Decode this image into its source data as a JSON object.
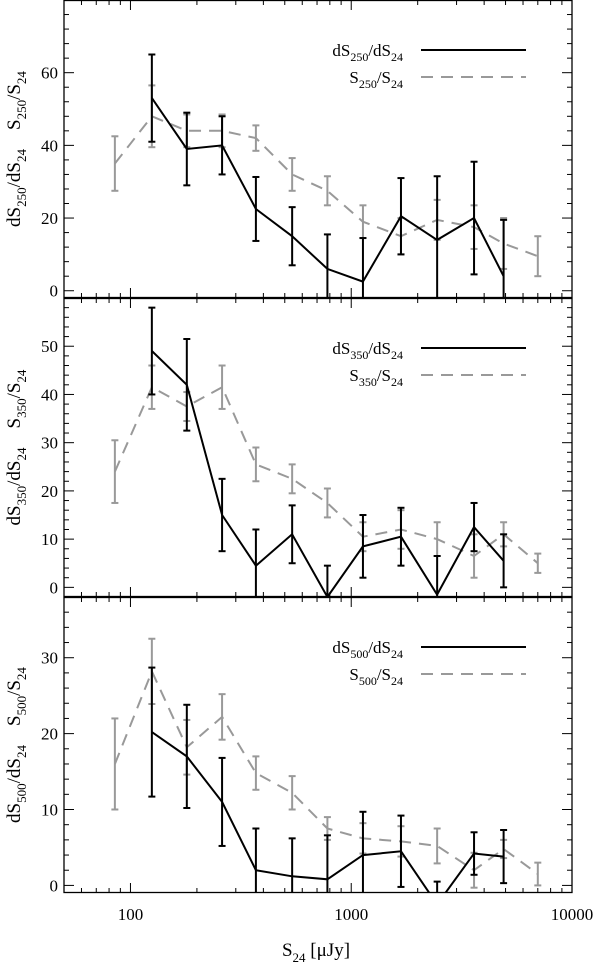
{
  "chart_data": {
    "type": "line",
    "xscale": "log",
    "xlim": [
      50,
      10000
    ],
    "x_ticks": [
      100,
      1000,
      10000
    ],
    "x_tick_labels": [
      "100",
      "1000",
      "10000"
    ],
    "xlabel": {
      "main": "S",
      "sub": "24",
      "tail": " [μJy]"
    },
    "colors": {
      "ratio_derivative": "#000000",
      "ratio_simple": "#999999"
    },
    "panels": [
      {
        "id": "250",
        "ylim": [
          -2,
          80
        ],
        "y_ticks": [
          0,
          20,
          40,
          60
        ],
        "ylabel": {
          "d1": "dS",
          "s1": "250",
          "m": "/dS",
          "s2": "24",
          "sp": "   ",
          "d2": "S",
          "s3": "250",
          "m2": "/S",
          "s4": "24"
        },
        "legend": [
          {
            "main": "dS",
            "sub1": "250",
            "mid": "/dS",
            "sub2": "24",
            "style": "solid"
          },
          {
            "main": "S",
            "sub1": "250",
            "mid": "/S",
            "sub2": "24",
            "style": "dashed"
          }
        ],
        "series": [
          {
            "key": "deriv",
            "style": "solid",
            "x": [
              125,
              180,
              260,
              370,
              540,
              780,
              1130,
              1680,
              2450,
              3600,
              4900
            ],
            "y": [
              53,
              39,
              40,
              22.5,
              15,
              6,
              2.5,
              20.5,
              14,
              20,
              4
            ],
            "err": [
              12,
              10,
              8,
              8.8,
              8,
              9.5,
              12,
              10.5,
              17.5,
              15.5,
              15.5
            ]
          },
          {
            "key": "simple",
            "style": "dashed",
            "x": [
              85,
              125,
              180,
              260,
              370,
              540,
              780,
              1130,
              1680,
              2450,
              3600,
              4900,
              7000
            ],
            "y": [
              35,
              48,
              44,
              44,
              42,
              32,
              27.5,
              19,
              15,
              19.5,
              17.5,
              13,
              9.5
            ],
            "err": [
              7.5,
              8.5,
              4.5,
              4.5,
              3.5,
              4.5,
              4,
              4.5,
              5,
              5.5,
              6,
              7,
              5.5
            ]
          }
        ]
      },
      {
        "id": "350",
        "ylim": [
          -2,
          60
        ],
        "y_ticks": [
          0,
          10,
          20,
          30,
          40,
          50
        ],
        "ylabel": {
          "d1": "dS",
          "s1": "350",
          "m": "/dS",
          "s2": "24",
          "sp": "   ",
          "d2": "S",
          "s3": "350",
          "m2": "/S",
          "s4": "24"
        },
        "legend": [
          {
            "main": "dS",
            "sub1": "350",
            "mid": "/dS",
            "sub2": "24",
            "style": "solid"
          },
          {
            "main": "S",
            "sub1": "350",
            "mid": "/S",
            "sub2": "24",
            "style": "dashed"
          }
        ],
        "series": [
          {
            "key": "deriv",
            "style": "solid",
            "x": [
              125,
              180,
              260,
              370,
              540,
              780,
              1130,
              1680,
              2450,
              3600,
              4900
            ],
            "y": [
              49,
              42,
              15,
              4.5,
              11,
              -2,
              8.5,
              10.5,
              -1.5,
              12.5,
              5.5
            ],
            "err": [
              9,
              9.5,
              7.5,
              7.5,
              6,
              6.5,
              6.5,
              6,
              8,
              5,
              5.5
            ]
          },
          {
            "key": "simple",
            "style": "dashed",
            "x": [
              85,
              125,
              180,
              260,
              370,
              540,
              780,
              1130,
              1680,
              2450,
              3600,
              4900,
              7000
            ],
            "y": [
              24,
              41.5,
              37.5,
              41.5,
              25.5,
              22.5,
              17.5,
              10.5,
              12,
              10,
              6.5,
              11,
              5
            ],
            "err": [
              6.5,
              4.5,
              3,
              4.5,
              3.5,
              3,
              3,
              3,
              4,
              3.5,
              4.5,
              2.5,
              2
            ]
          }
        ]
      },
      {
        "id": "500",
        "ylim": [
          -1,
          38
        ],
        "y_ticks": [
          0,
          10,
          20,
          30
        ],
        "ylabel": {
          "d1": "dS",
          "s1": "500",
          "m": "/dS",
          "s2": "24",
          "sp": "   ",
          "d2": "S",
          "s3": "500",
          "m2": "/S",
          "s4": "24"
        },
        "legend": [
          {
            "main": "dS",
            "sub1": "500",
            "mid": "/dS",
            "sub2": "24",
            "style": "solid"
          },
          {
            "main": "S",
            "sub1": "500",
            "mid": "/S",
            "sub2": "24",
            "style": "dashed"
          }
        ],
        "series": [
          {
            "key": "deriv",
            "style": "solid",
            "x": [
              125,
              180,
              260,
              370,
              540,
              780,
              1130,
              1680,
              2450,
              3600,
              4900
            ],
            "y": [
              20.2,
              17,
              11,
              2,
              1.2,
              0.8,
              4,
              4.5,
              -2.5,
              4.2,
              3.8
            ],
            "err": [
              8.5,
              6.8,
              5.8,
              5.5,
              5,
              5.8,
              5.7,
              4.7,
              3,
              2.8,
              3.5
            ]
          },
          {
            "key": "simple",
            "style": "dashed",
            "x": [
              85,
              125,
              180,
              260,
              370,
              540,
              780,
              1130,
              1680,
              2450,
              3600,
              4900,
              7000
            ],
            "y": [
              16,
              28.2,
              18.2,
              22.2,
              14.8,
              12.2,
              7.5,
              6.2,
              5.8,
              5.2,
              2,
              4.8,
              1.5
            ],
            "err": [
              6,
              4.3,
              3.6,
              3,
              2.2,
              2.2,
              1.5,
              2,
              2,
              2.3,
              2.3,
              1.2,
              1.5
            ]
          }
        ]
      }
    ]
  }
}
